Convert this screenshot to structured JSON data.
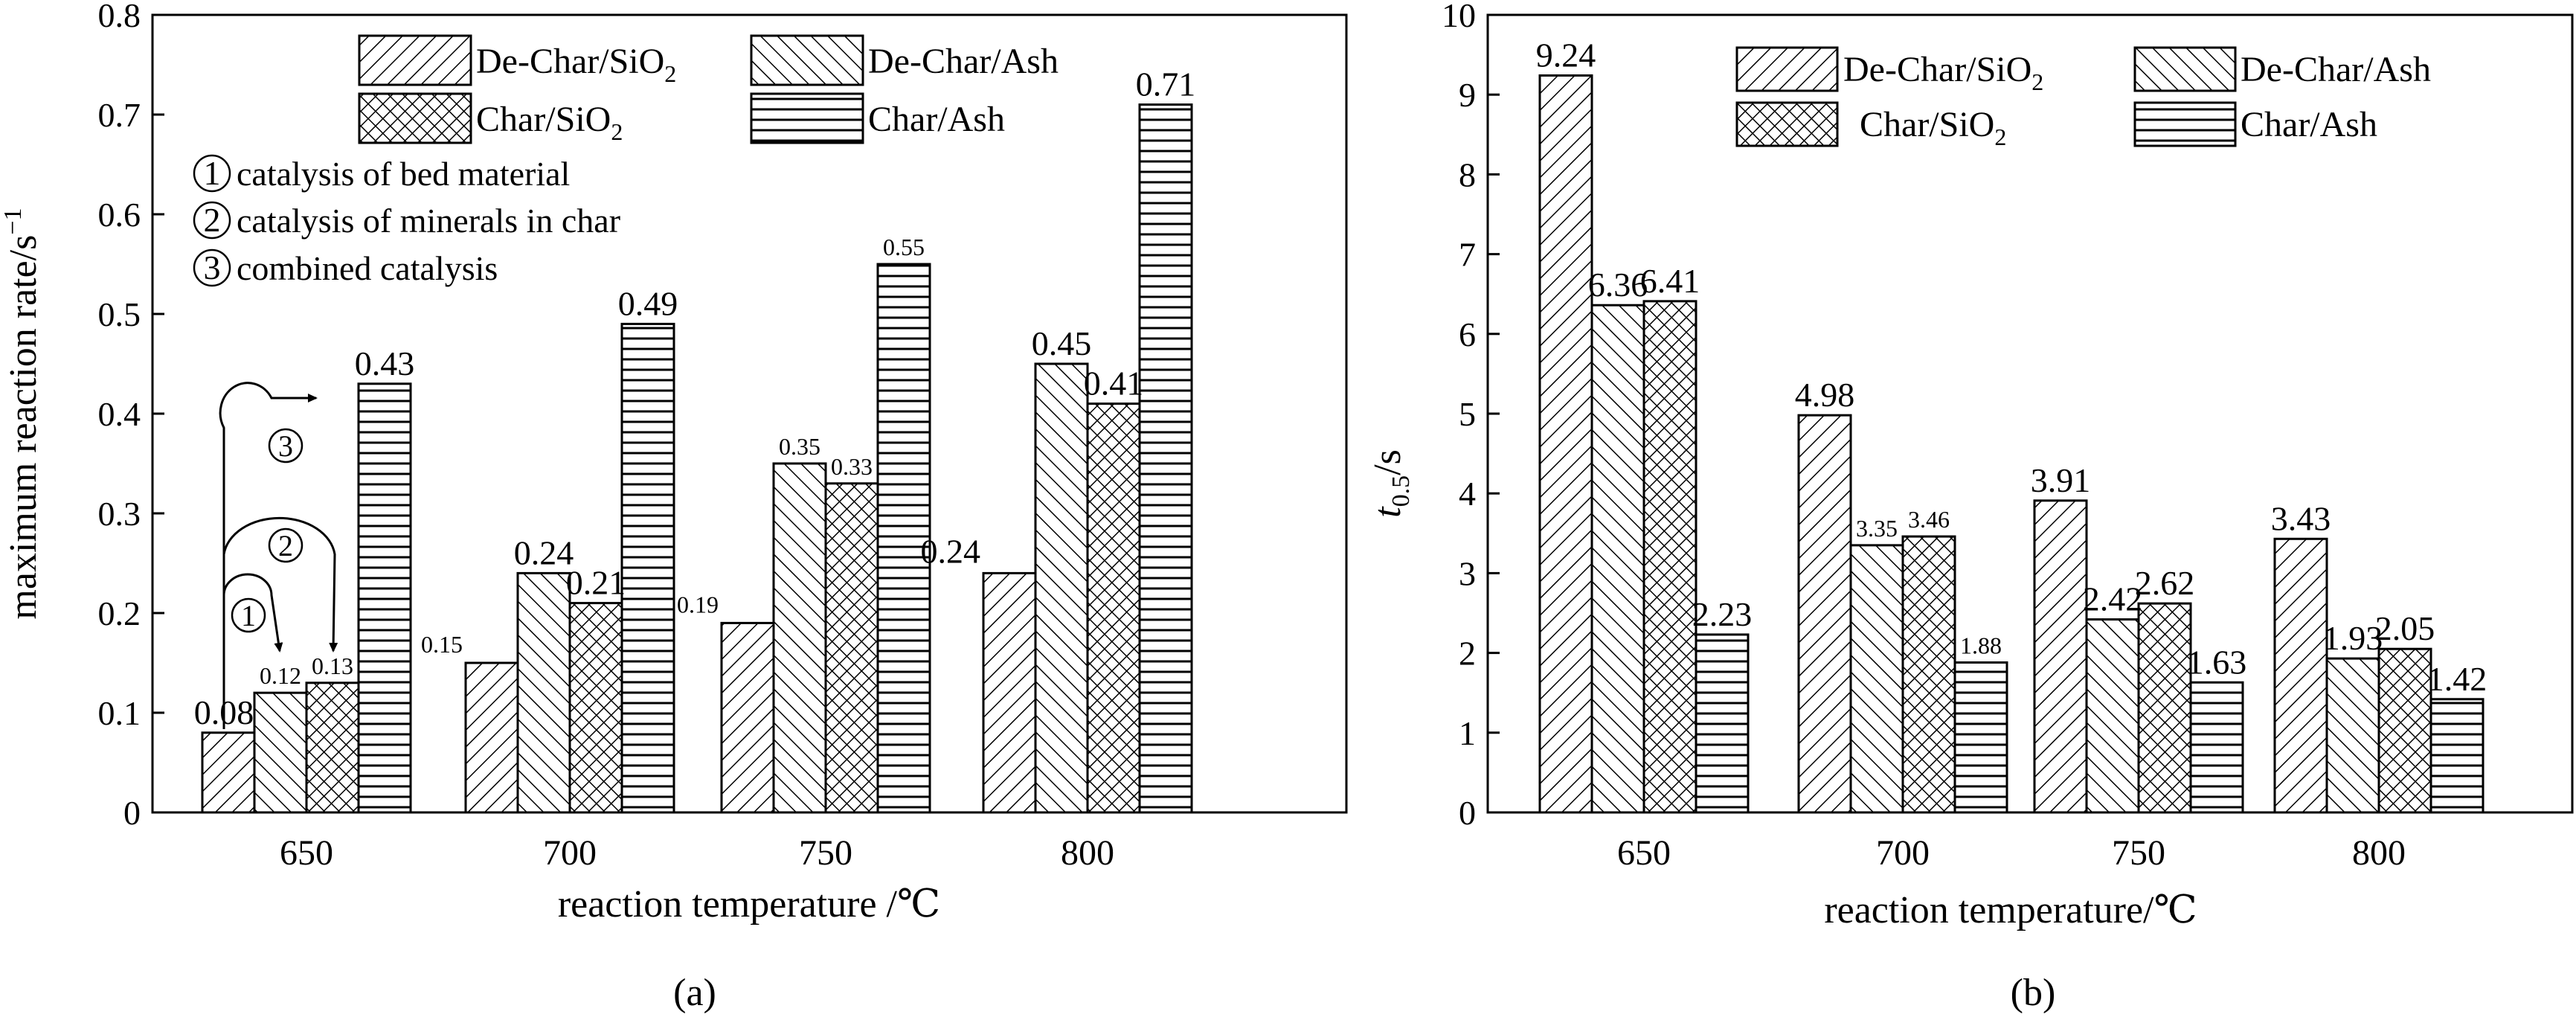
{
  "figure": {
    "label_a": "(a)",
    "label_b": "(b)"
  },
  "legend_labels": {
    "de_char_sio2": "De-Char/SiO",
    "de_char_ash": "De-Char/Ash",
    "char_sio2": "Char/SiO",
    "char_ash": "Char/Ash",
    "subscript_2": "2"
  },
  "annotations_a": {
    "circle_1": "1",
    "circle_2": "2",
    "circle_3": "3",
    "note_1": "catalysis of bed material",
    "note_2": "catalysis of minerals in char",
    "note_3": "combined catalysis"
  },
  "chart_data": [
    {
      "type": "bar",
      "panel": "a",
      "categories": [
        "650",
        "700",
        "750",
        "800"
      ],
      "series": [
        {
          "name": "De-Char/SiO2",
          "values": [
            0.08,
            0.15,
            0.19,
            0.24
          ]
        },
        {
          "name": "De-Char/Ash",
          "values": [
            0.12,
            0.24,
            0.35,
            0.45
          ]
        },
        {
          "name": "Char/SiO2",
          "values": [
            0.13,
            0.21,
            0.33,
            0.41
          ]
        },
        {
          "name": "Char/Ash",
          "values": [
            0.43,
            0.49,
            0.55,
            0.71
          ]
        }
      ],
      "data_labels": [
        [
          "0.08",
          "0.15",
          "0.19",
          "0.24"
        ],
        [
          "0.12",
          "0.24",
          "0.35",
          "0.45"
        ],
        [
          "0.13",
          "0.21",
          "0.33",
          "0.41"
        ],
        [
          "0.43",
          "0.49",
          "0.55",
          "0.71"
        ]
      ],
      "yticks": [
        "0",
        "0.1",
        "0.2",
        "0.3",
        "0.4",
        "0.5",
        "0.6",
        "0.7",
        "0.8"
      ],
      "ylim": [
        0,
        0.8
      ],
      "xlabel": "reaction temperature /℃",
      "ylabel": "maximum reaction rate/s",
      "ylabel_sup": "−1",
      "legend_position": "top",
      "grid": false
    },
    {
      "type": "bar",
      "panel": "b",
      "categories": [
        "650",
        "700",
        "750",
        "800"
      ],
      "series": [
        {
          "name": "De-Char/SiO2",
          "values": [
            9.24,
            4.98,
            3.91,
            3.43
          ]
        },
        {
          "name": "De-Char/Ash",
          "values": [
            6.36,
            3.35,
            2.42,
            1.93
          ]
        },
        {
          "name": "Char/SiO2",
          "values": [
            6.41,
            3.46,
            2.62,
            2.05
          ]
        },
        {
          "name": "Char/Ash",
          "values": [
            2.23,
            1.88,
            1.63,
            1.42
          ]
        }
      ],
      "data_labels": [
        [
          "9.24",
          "4.98",
          "3.91",
          "3.43"
        ],
        [
          "6.36",
          "3.35",
          "2.42",
          "1.93"
        ],
        [
          "6.41",
          "3.46",
          "2.62",
          "2.05"
        ],
        [
          "2.23",
          "1.88",
          "1.63",
          "1.42"
        ]
      ],
      "yticks": [
        "0",
        "1",
        "2",
        "3",
        "4",
        "5",
        "6",
        "7",
        "8",
        "9",
        "10"
      ],
      "ylim": [
        0,
        10
      ],
      "xlabel": "reaction temperature/℃",
      "ylabel": "t",
      "ylabel_sub": "0.5",
      "ylabel_suffix": "/s",
      "legend_position": "top-right",
      "grid": false
    }
  ]
}
